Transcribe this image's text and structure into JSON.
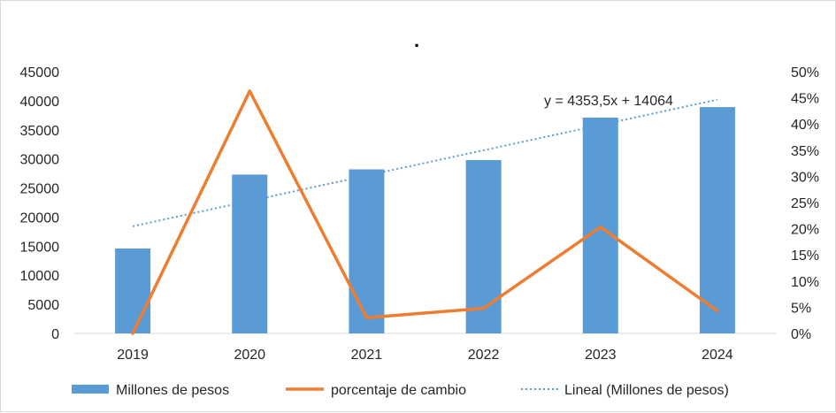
{
  "chart_data": {
    "type": "bar",
    "title": ".",
    "categories": [
      "2019",
      "2020",
      "2021",
      "2022",
      "2023",
      "2024"
    ],
    "series": [
      {
        "name": "Millones de pesos",
        "kind": "bar",
        "axis": "left",
        "color": "#5b9bd5",
        "values": [
          14600,
          27300,
          28200,
          29800,
          37100,
          38900
        ]
      },
      {
        "name": "porcentaje de cambio",
        "kind": "line",
        "axis": "right",
        "color": "#ed7d31",
        "values": [
          0,
          46.3,
          3.0,
          4.8,
          20.3,
          4.3
        ]
      },
      {
        "name": "Lineal (Millones de pesos)",
        "kind": "trendline",
        "axis": "left",
        "color": "#5b9bd5",
        "values": [
          18417.5,
          22771.0,
          27124.5,
          31478.0,
          35831.5,
          40185.0
        ]
      }
    ],
    "y_left": {
      "min": 0,
      "max": 45000,
      "step": 5000,
      "tick_labels": [
        "0",
        "5000",
        "10000",
        "15000",
        "20000",
        "25000",
        "30000",
        "35000",
        "40000",
        "45000"
      ]
    },
    "y_right": {
      "min": 0,
      "max": 50,
      "step": 5,
      "tick_labels": [
        "0%",
        "5%",
        "10%",
        "15%",
        "20%",
        "25%",
        "30%",
        "35%",
        "40%",
        "45%",
        "50%"
      ]
    },
    "annotation": "y = 4353,5x + 14064",
    "legend": {
      "position": "bottom",
      "items": [
        "Millones de pesos",
        "porcentaje de cambio",
        "Lineal (Millones de pesos)"
      ]
    }
  }
}
